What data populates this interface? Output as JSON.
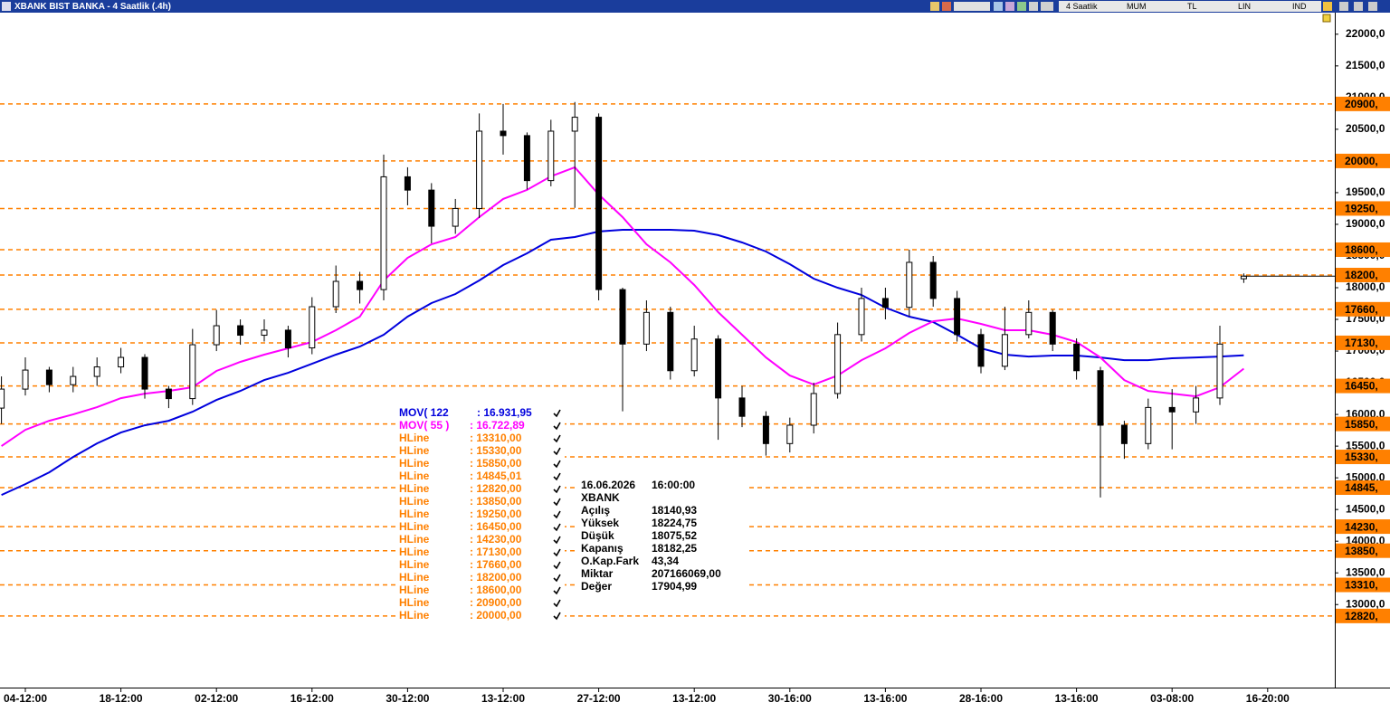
{
  "window": {
    "title": "XBANK BIST BANKA - 4 Saatlik (.4h)",
    "toolbar": [
      "4 Saatlik",
      "MUM",
      "TL",
      "LIN",
      "IND"
    ]
  },
  "chart_data": {
    "type": "candlestick",
    "categories": [
      null,
      "04-12:00",
      null,
      null,
      null,
      "18-12:00",
      null,
      null,
      null,
      "02-12:00",
      null,
      null,
      null,
      "16-12:00",
      null,
      null,
      null,
      "30-12:00",
      null,
      null,
      null,
      "13-12:00",
      null,
      null,
      null,
      "27-12:00",
      null,
      null,
      null,
      "13-12:00",
      null,
      null,
      null,
      "30-16:00",
      null,
      null,
      null,
      "13-16:00",
      null,
      null,
      null,
      "28-16:00",
      null,
      null,
      null,
      "13-16:00",
      null,
      null,
      null,
      "03-08:00",
      null,
      null,
      null,
      "16-20:00"
    ],
    "open": [
      16100,
      16400,
      16700,
      16470,
      16600,
      16750,
      16900,
      16400,
      16250,
      17100,
      17400,
      17250,
      17330,
      17050,
      17700,
      18100,
      17970,
      19750,
      19540,
      18970,
      19250,
      20470,
      20400,
      19690,
      20470,
      20690,
      17970,
      17110,
      17610,
      16690,
      17190,
      16260,
      15970,
      15540,
      15830,
      16330,
      17260,
      17830,
      17690,
      18400,
      17830,
      17260,
      16760,
      17260,
      17610,
      17110,
      16690,
      15830,
      15540,
      16110,
      16040,
      16260,
      18140.93,
      null
    ],
    "high": [
      16600,
      16900,
      16750,
      16750,
      16900,
      17050,
      16950,
      16450,
      17350,
      17650,
      17500,
      17500,
      17400,
      17850,
      18350,
      18250,
      20100,
      19900,
      19650,
      19400,
      20750,
      20900,
      20450,
      20650,
      20930,
      20750,
      18000,
      17800,
      17700,
      17400,
      17250,
      16450,
      16050,
      15950,
      16500,
      17450,
      18000,
      18000,
      18600,
      18500,
      17950,
      17350,
      17700,
      17800,
      17650,
      17200,
      16750,
      15900,
      16250,
      16400,
      16450,
      17400,
      18224.75,
      null
    ],
    "low": [
      15850,
      16300,
      16350,
      16350,
      16450,
      16650,
      16250,
      16100,
      16150,
      17000,
      17100,
      17150,
      16900,
      16950,
      17600,
      17750,
      17800,
      19300,
      18700,
      18850,
      19100,
      20100,
      19550,
      19600,
      19260,
      17800,
      16050,
      17000,
      16550,
      16600,
      15600,
      15800,
      15350,
      15400,
      15700,
      16250,
      17150,
      17500,
      17550,
      17700,
      17150,
      16650,
      16700,
      17200,
      17000,
      16550,
      14690,
      15300,
      15450,
      15450,
      15850,
      16150,
      18075.52,
      null
    ],
    "close": [
      16400,
      16700,
      16470,
      16600,
      16750,
      16900,
      16400,
      16250,
      17100,
      17400,
      17250,
      17330,
      17050,
      17700,
      18100,
      17970,
      19750,
      19540,
      18970,
      19250,
      20470,
      20400,
      19690,
      20470,
      20690,
      17970,
      17110,
      17610,
      16690,
      17190,
      16260,
      15970,
      15540,
      15830,
      16330,
      17260,
      17830,
      17690,
      18400,
      17830,
      17260,
      16760,
      17260,
      17610,
      17110,
      16690,
      15830,
      15540,
      16110,
      16040,
      16260,
      17110,
      18182.25,
      null
    ],
    "up_color": "#ffffff",
    "down_color": "#000000",
    "series": [
      {
        "name": "MOV( 122",
        "color": "#0000dd",
        "values": [
          14730,
          14900,
          15086,
          15329,
          15543,
          15714,
          15829,
          15900,
          16043,
          16229,
          16371,
          16543,
          16657,
          16800,
          16943,
          17071,
          17257,
          17543,
          17757,
          17900,
          18114,
          18357,
          18543,
          18757,
          18800,
          18886,
          18914,
          18914,
          18914,
          18900,
          18829,
          18714,
          18571,
          18371,
          18143,
          18000,
          17886,
          17686,
          17543,
          17457,
          17257,
          17043,
          16943,
          16914,
          16929,
          16929,
          16900,
          16857,
          16857,
          16886,
          16900,
          16914,
          16931.95,
          null
        ]
      },
      {
        "name": "MOV( 55 )",
        "color": "#ff00ff",
        "values": [
          15500,
          15757,
          15900,
          16000,
          16114,
          16257,
          16329,
          16371,
          16429,
          16686,
          16829,
          16943,
          17043,
          17143,
          17329,
          17543,
          18114,
          18471,
          18686,
          18800,
          19114,
          19400,
          19543,
          19757,
          19900,
          19471,
          19114,
          18686,
          18400,
          18043,
          17614,
          17257,
          16900,
          16614,
          16471,
          16614,
          16857,
          17043,
          17286,
          17471,
          17514,
          17429,
          17329,
          17329,
          17257,
          17143,
          16900,
          16543,
          16371,
          16329,
          16286,
          16429,
          16722.89,
          null
        ]
      }
    ],
    "hlines": {
      "color": "#ff8000",
      "values": [
        20900,
        20000,
        19250,
        18600,
        18200,
        17660,
        17130,
        16450,
        15850,
        15330,
        14845.01,
        14230,
        13850,
        13310,
        12820
      ],
      "labels": [
        "20900,",
        "20000,",
        "19250,",
        "18600,",
        "18200,",
        "17660,",
        "17130,",
        "16450,",
        "15850,",
        "15330,",
        "14845,",
        "14230,",
        "13850,",
        "13310,",
        "12820,"
      ]
    },
    "ylim": [
      11690,
      22340
    ],
    "yticks": [
      {
        "value": 13000,
        "label": "13000,0"
      },
      {
        "value": 13500,
        "label": "13500,0"
      },
      {
        "value": 14000,
        "label": "14000,0"
      },
      {
        "value": 14500,
        "label": "14500,0"
      },
      {
        "value": 15000,
        "label": "15000,0"
      },
      {
        "value": 15500,
        "label": "15500,0"
      },
      {
        "value": 16000,
        "label": "16000,0"
      },
      {
        "value": 16500,
        "label": "16500,0"
      },
      {
        "value": 17000,
        "label": "17000,0"
      },
      {
        "value": 17500,
        "label": "17500,0"
      },
      {
        "value": 18000,
        "label": "18000,0"
      },
      {
        "value": 18500,
        "label": "18500,0"
      },
      {
        "value": 19000,
        "label": "19000,0"
      },
      {
        "value": 19500,
        "label": "19500,0"
      },
      {
        "value": 20000,
        "label": "20000,0"
      },
      {
        "value": 20500,
        "label": "20500,0"
      },
      {
        "value": 21000,
        "label": "21000,0"
      },
      {
        "value": 21500,
        "label": "21500,0"
      },
      {
        "value": 22000,
        "label": "22000,0"
      }
    ],
    "legend": {
      "series_values": [
        ": 16.931,95",
        ": 16.722,89"
      ],
      "hlines": [
        {
          "name": "HLine",
          "value": ": 13310,00"
        },
        {
          "name": "HLine",
          "value": ": 15330,00"
        },
        {
          "name": "HLine",
          "value": ": 15850,00"
        },
        {
          "name": "HLine",
          "value": ": 14845,01"
        },
        {
          "name": "HLine",
          "value": ": 12820,00"
        },
        {
          "name": "HLine",
          "value": ": 13850,00"
        },
        {
          "name": "HLine",
          "value": ": 19250,00"
        },
        {
          "name": "HLine",
          "value": ": 16450,00"
        },
        {
          "name": "HLine",
          "value": ": 14230,00"
        },
        {
          "name": "HLine",
          "value": ": 17130,00"
        },
        {
          "name": "HLine",
          "value": ": 17660,00"
        },
        {
          "name": "HLine",
          "value": ": 18200,00"
        },
        {
          "name": "HLine",
          "value": ": 18600,00"
        },
        {
          "name": "HLine",
          "value": ": 20900,00"
        },
        {
          "name": "HLine",
          "value": ": 20000,00"
        }
      ]
    },
    "info": {
      "date": "16.06.2026",
      "time": "16:00:00",
      "symbol": "XBANK",
      "rows": [
        [
          "Açılış",
          "18140,93"
        ],
        [
          "Yüksek",
          "18224,75"
        ],
        [
          "Düşük",
          "18075,52"
        ],
        [
          "Kapanış",
          "18182,25"
        ],
        [
          "O.Kap.Fark",
          "43,34"
        ],
        [
          "Miktar",
          "207166069,00"
        ],
        [
          "Değer",
          "17904,99"
        ]
      ]
    }
  }
}
